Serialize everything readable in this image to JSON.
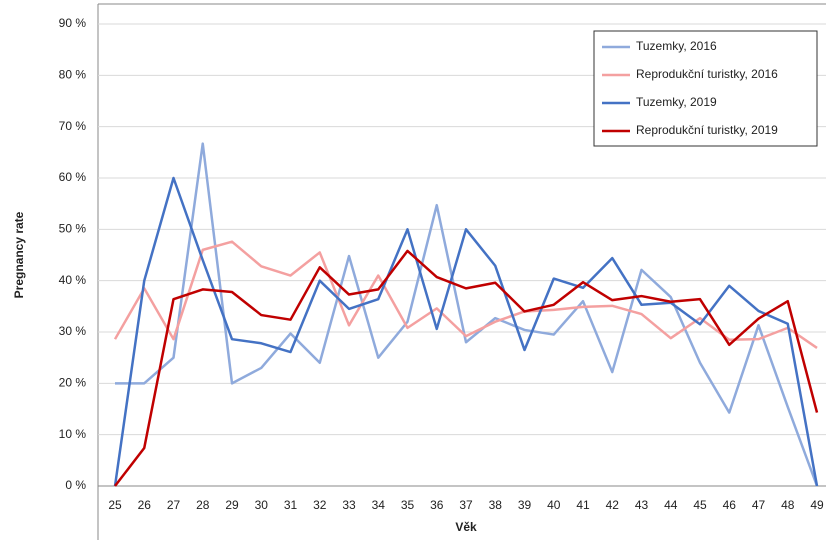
{
  "chart_data": {
    "type": "line",
    "x_label": "Věk",
    "y_label": "Pregnancy rate",
    "categories": [
      25,
      26,
      27,
      28,
      29,
      30,
      31,
      32,
      33,
      34,
      35,
      36,
      37,
      38,
      39,
      40,
      41,
      42,
      43,
      44,
      45,
      46,
      47,
      48,
      49
    ],
    "series": [
      {
        "name": "Tuzemky, 2016",
        "color": "#8faadc",
        "values": [
          20,
          20,
          25,
          66.7,
          20,
          23,
          29.7,
          24,
          44.8,
          25,
          32,
          54.7,
          28,
          32.7,
          30.4,
          29.5,
          36,
          22.2,
          42.1,
          36.8,
          24,
          14.3,
          31.3,
          15.4,
          0
        ]
      },
      {
        "name": "Reprodukční turistky, 2016",
        "color": "#f4a0a0",
        "values": [
          28.6,
          38.5,
          28.6,
          46,
          47.6,
          42.8,
          41,
          45.5,
          31.3,
          41,
          30.8,
          34.6,
          29.2,
          32,
          34,
          34.3,
          34.9,
          35.1,
          33.5,
          28.8,
          32.7,
          28.5,
          28.6,
          30.8,
          26.9
        ]
      },
      {
        "name": "Tuzemky, 2019",
        "color": "#4472c4",
        "values": [
          0,
          40,
          60,
          44,
          28.6,
          27.8,
          26.1,
          40,
          34.5,
          36.4,
          50,
          30.6,
          50,
          42.9,
          26.5,
          40.4,
          38.6,
          44.4,
          35.3,
          35.7,
          31.5,
          39,
          34.1,
          31.6,
          0
        ]
      },
      {
        "name": "Reprodukční turistky, 2019",
        "color": "#c00000",
        "values": [
          0,
          7.4,
          36.4,
          38.3,
          37.8,
          33.3,
          32.4,
          42.6,
          37.3,
          38.3,
          45.8,
          40.7,
          38.5,
          39.6,
          34,
          35.3,
          39.7,
          36.2,
          37,
          35.9,
          36.4,
          27.5,
          32.6,
          36,
          14.3
        ]
      }
    ],
    "ylim": [
      0,
      90
    ],
    "yticks": [
      {
        "value": 0,
        "label": "0 %"
      },
      {
        "value": 10,
        "label": "10 %"
      },
      {
        "value": 20,
        "label": "20 %"
      },
      {
        "value": 30,
        "label": "30 %"
      },
      {
        "value": 40,
        "label": "40 %"
      },
      {
        "value": 50,
        "label": "50 %"
      },
      {
        "value": 60,
        "label": "60 %"
      },
      {
        "value": 70,
        "label": "70 %"
      },
      {
        "value": 80,
        "label": "80 %"
      },
      {
        "value": 90,
        "label": "90 %"
      }
    ],
    "grid": true,
    "legend": "upper right"
  }
}
